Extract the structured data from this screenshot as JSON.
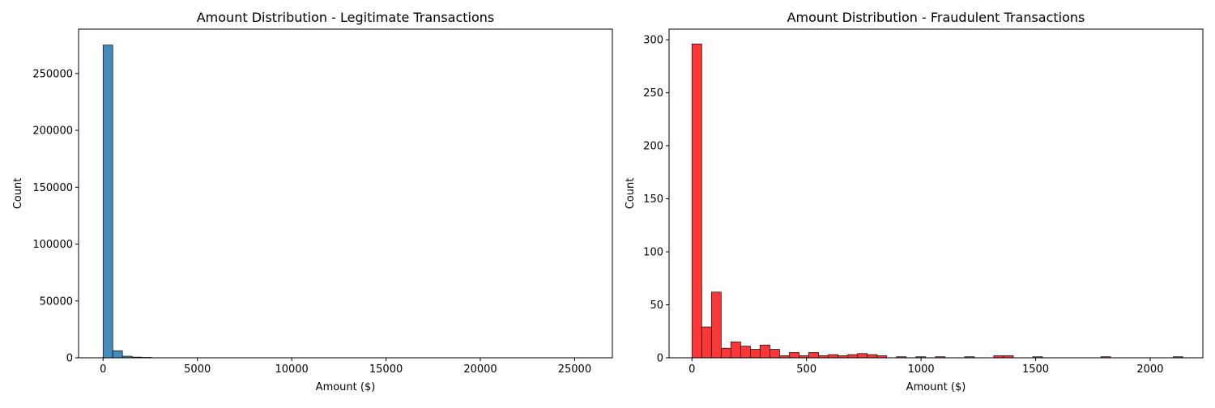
{
  "chart_data": [
    {
      "type": "bar",
      "title": "Amount Distribution - Legitimate Transactions",
      "xlabel": "Amount ($)",
      "ylabel": "Count",
      "color": "#2f7fb5",
      "bar_edge_color": "#1a1a1a",
      "xlim": [
        -1300,
        27000
      ],
      "ylim": [
        0,
        289000
      ],
      "x_ticks": [
        0,
        5000,
        10000,
        15000,
        20000,
        25000
      ],
      "y_ticks": [
        0,
        50000,
        100000,
        150000,
        200000,
        250000
      ],
      "bins": [
        {
          "x0": 0,
          "x1": 512,
          "y": 275000
        },
        {
          "x0": 512,
          "x1": 1024,
          "y": 6200
        },
        {
          "x0": 1024,
          "x1": 1536,
          "y": 1400
        },
        {
          "x0": 1536,
          "x1": 2048,
          "y": 600
        },
        {
          "x0": 2048,
          "x1": 2560,
          "y": 350
        }
      ],
      "grid": false
    },
    {
      "type": "bar",
      "title": "Amount Distribution - Fraudulent Transactions",
      "xlabel": "Amount ($)",
      "ylabel": "Count",
      "color": "#ff2020",
      "bar_edge_color": "#1a1a1a",
      "xlim": [
        -100,
        2230
      ],
      "ylim": [
        0,
        310
      ],
      "x_ticks": [
        0,
        500,
        1000,
        1500,
        2000
      ],
      "y_ticks": [
        0,
        50,
        100,
        150,
        200,
        250,
        300
      ],
      "bin_width": 42.5,
      "bins": [
        {
          "x0": 0,
          "y": 296
        },
        {
          "x0": 42.5,
          "y": 29
        },
        {
          "x0": 85,
          "y": 62
        },
        {
          "x0": 127.5,
          "y": 9
        },
        {
          "x0": 170,
          "y": 15
        },
        {
          "x0": 212.5,
          "y": 11
        },
        {
          "x0": 255,
          "y": 8
        },
        {
          "x0": 297.5,
          "y": 12
        },
        {
          "x0": 340,
          "y": 8
        },
        {
          "x0": 382.5,
          "y": 2
        },
        {
          "x0": 425,
          "y": 5
        },
        {
          "x0": 467.5,
          "y": 2
        },
        {
          "x0": 510,
          "y": 5
        },
        {
          "x0": 552.5,
          "y": 2
        },
        {
          "x0": 595,
          "y": 3
        },
        {
          "x0": 637.5,
          "y": 2
        },
        {
          "x0": 680,
          "y": 3
        },
        {
          "x0": 722.5,
          "y": 4
        },
        {
          "x0": 765,
          "y": 3
        },
        {
          "x0": 807.5,
          "y": 2
        },
        {
          "x0": 892.5,
          "y": 1
        },
        {
          "x0": 977.5,
          "y": 1
        },
        {
          "x0": 1062.5,
          "y": 1
        },
        {
          "x0": 1190,
          "y": 1
        },
        {
          "x0": 1317.5,
          "y": 2
        },
        {
          "x0": 1360,
          "y": 2
        },
        {
          "x0": 1487.5,
          "y": 1
        },
        {
          "x0": 1785,
          "y": 1
        },
        {
          "x0": 2100,
          "y": 1
        }
      ],
      "grid": false
    }
  ]
}
